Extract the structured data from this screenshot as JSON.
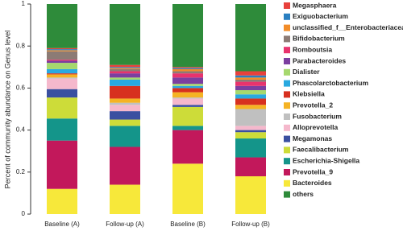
{
  "chart_data": {
    "type": "stacked_bar",
    "y_label": "Percent of community abundance on Genus level",
    "categories": [
      "Baseline (A)",
      "Follow-up (A)",
      "Baseline (B)",
      "Follow-up (B)"
    ],
    "ylim": [
      0,
      1
    ],
    "yticks": [
      0,
      0.2,
      0.4,
      0.6,
      0.8,
      1
    ],
    "series": [
      {
        "name": "Megasphaera",
        "color": "#e8413c",
        "values": [
          0.005,
          0.01,
          0.005,
          0.02
        ]
      },
      {
        "name": "Exiguobacterium",
        "color": "#2a7fc1",
        "values": [
          0.005,
          0.005,
          0.005,
          0.01
        ]
      },
      {
        "name": "unclassified_f__Enterobacteriaceae",
        "color": "#f28c28",
        "values": [
          0.005,
          0.005,
          0.01,
          0.01
        ]
      },
      {
        "name": "Bifidobacterium",
        "color": "#8c7b75",
        "values": [
          0.04,
          0.01,
          0.01,
          0.01
        ]
      },
      {
        "name": "Romboutsia",
        "color": "#e8336d",
        "values": [
          0.005,
          0.01,
          0.02,
          0.02
        ]
      },
      {
        "name": "Parabacteroides",
        "color": "#7b3fa0",
        "values": [
          0.01,
          0.02,
          0.03,
          0.02
        ]
      },
      {
        "name": "Dialister",
        "color": "#a6d86e",
        "values": [
          0.03,
          0.01,
          0.01,
          0.02
        ]
      },
      {
        "name": "Phascolarctobacterium",
        "color": "#29a9e0",
        "values": [
          0.02,
          0.03,
          0.01,
          0.02
        ]
      },
      {
        "name": "Klebsiella",
        "color": "#d7301f",
        "values": [
          0.005,
          0.06,
          0.02,
          0.03
        ]
      },
      {
        "name": "Prevotella_2",
        "color": "#f5b324",
        "values": [
          0.015,
          0.02,
          0.025,
          0.02
        ]
      },
      {
        "name": "Fusobacterium",
        "color": "#c0c0c0",
        "values": [
          0.005,
          0.01,
          0.005,
          0.08
        ]
      },
      {
        "name": "Alloprevotella",
        "color": "#f5b8cc",
        "values": [
          0.05,
          0.03,
          0.03,
          0.02
        ]
      },
      {
        "name": "Megamonas",
        "color": "#3a50a0",
        "values": [
          0.04,
          0.04,
          0.01,
          0.01
        ]
      },
      {
        "name": "Faecalibacterium",
        "color": "#cddc39",
        "values": [
          0.1,
          0.03,
          0.09,
          0.03
        ]
      },
      {
        "name": "Escherichia-Shigella",
        "color": "#14958a",
        "values": [
          0.105,
          0.1,
          0.02,
          0.09
        ]
      },
      {
        "name": "Prevotella_9",
        "color": "#c2185b",
        "values": [
          0.23,
          0.18,
          0.16,
          0.09
        ]
      },
      {
        "name": "Bacteroides",
        "color": "#f7e83a",
        "values": [
          0.12,
          0.14,
          0.24,
          0.18
        ]
      },
      {
        "name": "others",
        "color": "#2e8b3a",
        "values": [
          0.21,
          0.29,
          0.3,
          0.32
        ]
      }
    ]
  }
}
